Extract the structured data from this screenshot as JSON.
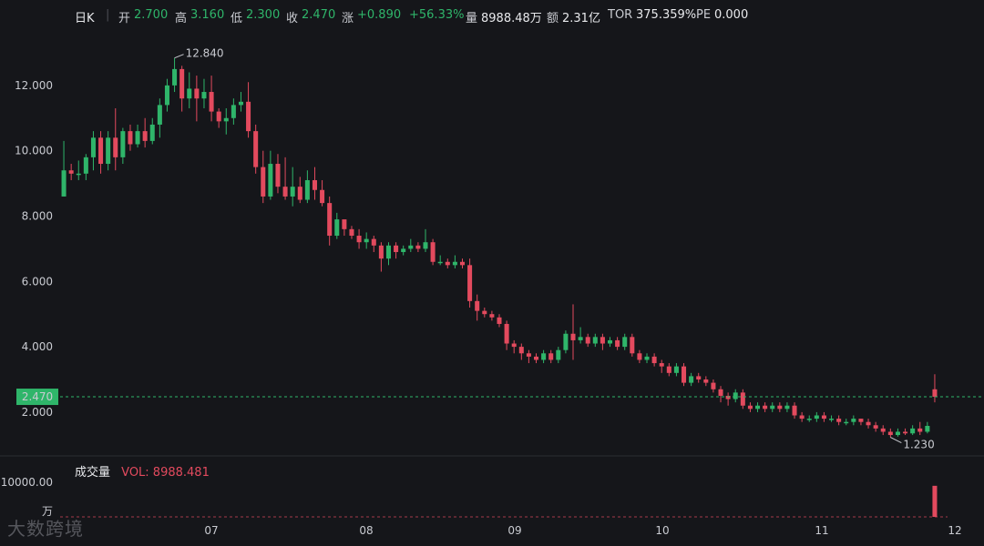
{
  "header": {
    "period": "日K",
    "open_label": "开",
    "open": "2.700",
    "high_label": "高",
    "high": "3.160",
    "low_label": "低",
    "low": "2.300",
    "close_label": "收",
    "close": "2.470",
    "change_label": "涨",
    "change": "+0.890",
    "change_pct": "+56.33%",
    "volume_label": "量",
    "volume": "8988.48万",
    "amount_label": "额",
    "amount": "2.31亿",
    "tor_label": "TOR",
    "tor": "375.359%",
    "pe_label": "PE",
    "pe": "0.000"
  },
  "volume_panel": {
    "title": "成交量",
    "vol_label": "VOL: 8988.481",
    "tick": "10000.00",
    "unit": "万",
    "vol_max": 10000,
    "last_volume": 8988.481
  },
  "watermark": "大数跨境",
  "colors": {
    "up": "#2fb56a",
    "down": "#e34a5e",
    "background": "#15161a",
    "current_price_tag": "#2fb56a"
  },
  "chart_data": {
    "type": "candlestick",
    "ylim": [
      0.8,
      13.5
    ],
    "yticks": [
      "12.000",
      "10.000",
      "8.000",
      "6.000",
      "4.000",
      "2.000"
    ],
    "ytick_values": [
      12,
      10,
      8,
      6,
      4,
      2
    ],
    "xticks": [
      "07",
      "08",
      "09",
      "10",
      "11",
      "12"
    ],
    "current_price": 2.47,
    "current_price_label": "2.470",
    "max_label": "12.840",
    "max_value": 12.84,
    "min_label": "1.230",
    "min_value": 1.23,
    "candles": [
      [
        8.6,
        9.4,
        10.3,
        8.6
      ],
      [
        9.4,
        9.3,
        9.6,
        9.1
      ],
      [
        9.3,
        9.3,
        9.7,
        9.1
      ],
      [
        9.3,
        9.8,
        9.9,
        9.1
      ],
      [
        9.8,
        10.4,
        10.6,
        9.4
      ],
      [
        10.4,
        9.6,
        10.6,
        9.3
      ],
      [
        9.6,
        10.4,
        10.6,
        9.4
      ],
      [
        10.4,
        9.8,
        11.3,
        9.4
      ],
      [
        9.8,
        10.6,
        10.7,
        9.6
      ],
      [
        10.6,
        10.2,
        10.8,
        10.0
      ],
      [
        10.2,
        10.6,
        10.8,
        10.1
      ],
      [
        10.6,
        10.3,
        11.0,
        10.1
      ],
      [
        10.3,
        10.8,
        11.0,
        10.2
      ],
      [
        10.8,
        11.4,
        11.6,
        10.4
      ],
      [
        11.4,
        12.0,
        12.2,
        11.2
      ],
      [
        12.0,
        12.5,
        12.84,
        11.8
      ],
      [
        12.5,
        11.6,
        12.6,
        11.2
      ],
      [
        11.6,
        11.9,
        12.4,
        11.3
      ],
      [
        11.9,
        11.6,
        12.3,
        10.9
      ],
      [
        11.6,
        11.8,
        12.2,
        11.3
      ],
      [
        11.8,
        11.2,
        12.3,
        10.9
      ],
      [
        11.2,
        10.9,
        11.3,
        10.7
      ],
      [
        10.9,
        11.0,
        11.3,
        10.5
      ],
      [
        11.0,
        11.4,
        11.6,
        10.8
      ],
      [
        11.4,
        11.5,
        11.8,
        11.2
      ],
      [
        11.5,
        10.6,
        12.1,
        10.4
      ],
      [
        10.6,
        9.5,
        10.8,
        9.3
      ],
      [
        9.5,
        8.6,
        10.0,
        8.4
      ],
      [
        8.6,
        9.6,
        10.0,
        8.5
      ],
      [
        9.6,
        8.9,
        9.9,
        8.7
      ],
      [
        8.9,
        8.6,
        9.8,
        8.5
      ],
      [
        8.6,
        8.9,
        9.5,
        8.3
      ],
      [
        8.9,
        8.5,
        9.2,
        8.4
      ],
      [
        8.5,
        9.1,
        9.4,
        8.4
      ],
      [
        9.1,
        8.8,
        9.5,
        8.5
      ],
      [
        8.8,
        8.4,
        9.1,
        8.3
      ],
      [
        8.4,
        7.4,
        8.6,
        7.1
      ],
      [
        7.4,
        7.9,
        8.1,
        7.3
      ],
      [
        7.9,
        7.6,
        7.9,
        7.4
      ],
      [
        7.6,
        7.4,
        7.7,
        7.3
      ],
      [
        7.4,
        7.2,
        7.6,
        7.0
      ],
      [
        7.2,
        7.3,
        7.5,
        7.0
      ],
      [
        7.3,
        7.1,
        7.4,
        6.9
      ],
      [
        7.1,
        6.7,
        7.2,
        6.3
      ],
      [
        6.7,
        7.1,
        7.2,
        6.5
      ],
      [
        7.1,
        6.9,
        7.2,
        6.7
      ],
      [
        6.9,
        7.0,
        7.1,
        6.8
      ],
      [
        7.0,
        7.1,
        7.3,
        6.9
      ],
      [
        7.1,
        7.0,
        7.2,
        6.9
      ],
      [
        7.0,
        7.2,
        7.6,
        6.9
      ],
      [
        7.2,
        6.6,
        7.3,
        6.5
      ],
      [
        6.6,
        6.6,
        6.8,
        6.5
      ],
      [
        6.6,
        6.5,
        6.7,
        6.4
      ],
      [
        6.5,
        6.6,
        6.8,
        6.4
      ],
      [
        6.6,
        6.5,
        6.7,
        6.4
      ],
      [
        6.5,
        5.4,
        6.7,
        5.2
      ],
      [
        5.4,
        5.1,
        5.6,
        4.8
      ],
      [
        5.1,
        5.0,
        5.2,
        4.9
      ],
      [
        5.0,
        4.9,
        5.1,
        4.8
      ],
      [
        4.9,
        4.7,
        5.0,
        4.6
      ],
      [
        4.7,
        4.1,
        4.8,
        3.9
      ],
      [
        4.1,
        4.0,
        4.2,
        3.8
      ],
      [
        4.0,
        3.8,
        4.1,
        3.6
      ],
      [
        3.8,
        3.7,
        3.9,
        3.5
      ],
      [
        3.7,
        3.6,
        3.8,
        3.5
      ],
      [
        3.6,
        3.8,
        3.9,
        3.5
      ],
      [
        3.8,
        3.6,
        3.9,
        3.5
      ],
      [
        3.6,
        3.9,
        4.0,
        3.5
      ],
      [
        3.9,
        4.4,
        4.5,
        3.8
      ],
      [
        4.4,
        4.2,
        5.3,
        3.6
      ],
      [
        4.2,
        4.3,
        4.6,
        4.1
      ],
      [
        4.3,
        4.1,
        4.4,
        4.0
      ],
      [
        4.1,
        4.3,
        4.4,
        4.0
      ],
      [
        4.3,
        4.1,
        4.4,
        3.9
      ],
      [
        4.1,
        4.2,
        4.3,
        4.0
      ],
      [
        4.2,
        4.0,
        4.3,
        3.9
      ],
      [
        4.0,
        4.3,
        4.4,
        3.9
      ],
      [
        4.3,
        3.8,
        4.4,
        3.7
      ],
      [
        3.8,
        3.6,
        3.9,
        3.5
      ],
      [
        3.6,
        3.7,
        3.8,
        3.5
      ],
      [
        3.7,
        3.5,
        3.8,
        3.4
      ],
      [
        3.5,
        3.4,
        3.6,
        3.2
      ],
      [
        3.4,
        3.2,
        3.5,
        3.1
      ],
      [
        3.2,
        3.4,
        3.5,
        3.1
      ],
      [
        3.4,
        2.9,
        3.5,
        2.8
      ],
      [
        2.9,
        3.1,
        3.2,
        2.8
      ],
      [
        3.1,
        3.0,
        3.2,
        2.9
      ],
      [
        3.0,
        2.9,
        3.1,
        2.8
      ],
      [
        2.9,
        2.7,
        3.0,
        2.6
      ],
      [
        2.7,
        2.5,
        2.8,
        2.3
      ],
      [
        2.5,
        2.4,
        2.6,
        2.2
      ],
      [
        2.4,
        2.6,
        2.7,
        2.3
      ],
      [
        2.6,
        2.2,
        2.7,
        2.1
      ],
      [
        2.2,
        2.1,
        2.3,
        2.0
      ],
      [
        2.1,
        2.2,
        2.3,
        2.0
      ],
      [
        2.2,
        2.1,
        2.3,
        2.0
      ],
      [
        2.1,
        2.2,
        2.3,
        2.0
      ],
      [
        2.2,
        2.1,
        2.3,
        2.0
      ],
      [
        2.1,
        2.2,
        2.3,
        2.0
      ],
      [
        2.2,
        1.9,
        2.3,
        1.8
      ],
      [
        1.9,
        1.8,
        2.0,
        1.7
      ],
      [
        1.8,
        1.8,
        1.9,
        1.7
      ],
      [
        1.8,
        1.9,
        2.0,
        1.7
      ],
      [
        1.9,
        1.8,
        2.0,
        1.7
      ],
      [
        1.8,
        1.8,
        1.9,
        1.7
      ],
      [
        1.8,
        1.7,
        1.9,
        1.6
      ],
      [
        1.7,
        1.7,
        1.8,
        1.6
      ],
      [
        1.7,
        1.8,
        1.9,
        1.6
      ],
      [
        1.8,
        1.7,
        1.8,
        1.6
      ],
      [
        1.7,
        1.6,
        1.8,
        1.5
      ],
      [
        1.6,
        1.5,
        1.7,
        1.4
      ],
      [
        1.5,
        1.4,
        1.6,
        1.3
      ],
      [
        1.4,
        1.3,
        1.5,
        1.23
      ],
      [
        1.3,
        1.4,
        1.5,
        1.25
      ],
      [
        1.4,
        1.35,
        1.5,
        1.3
      ],
      [
        1.35,
        1.5,
        1.6,
        1.3
      ],
      [
        1.5,
        1.4,
        1.7,
        1.3
      ],
      [
        1.4,
        1.58,
        1.7,
        1.35
      ],
      [
        2.7,
        2.47,
        3.16,
        2.3
      ]
    ]
  }
}
